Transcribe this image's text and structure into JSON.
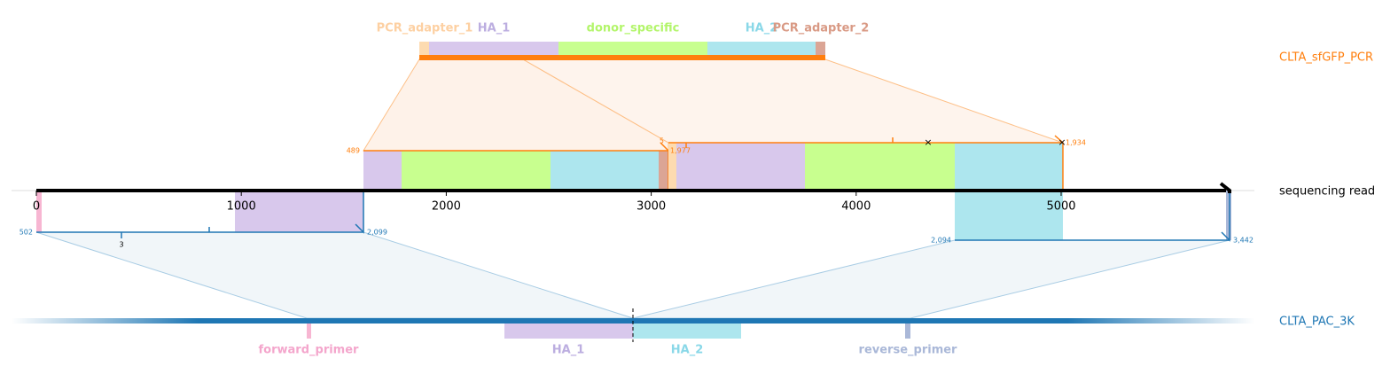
{
  "top_construct": {
    "name": "CLTA_sfGFP_PCR",
    "features": [
      "PCR_adapter_1",
      "HA_1",
      "donor_specific",
      "HA_2",
      "PCR_adapter_2"
    ]
  },
  "read": {
    "name": "sequencing read",
    "axis_ticks": [
      0,
      1000,
      2000,
      3000,
      4000,
      5000
    ]
  },
  "alignments": {
    "top": [
      {
        "start": "489",
        "end": "1,977"
      },
      {
        "start": "5",
        "end": "1,934"
      }
    ],
    "bottom": [
      {
        "start": "502",
        "end": "2,099",
        "mark": "3"
      },
      {
        "start": "2,094",
        "end": "3,442"
      }
    ]
  },
  "bottom_construct": {
    "name": "CLTA_PAC_3K",
    "features": [
      "forward_primer",
      "HA_1",
      "HA_2",
      "reverse_primer"
    ]
  }
}
